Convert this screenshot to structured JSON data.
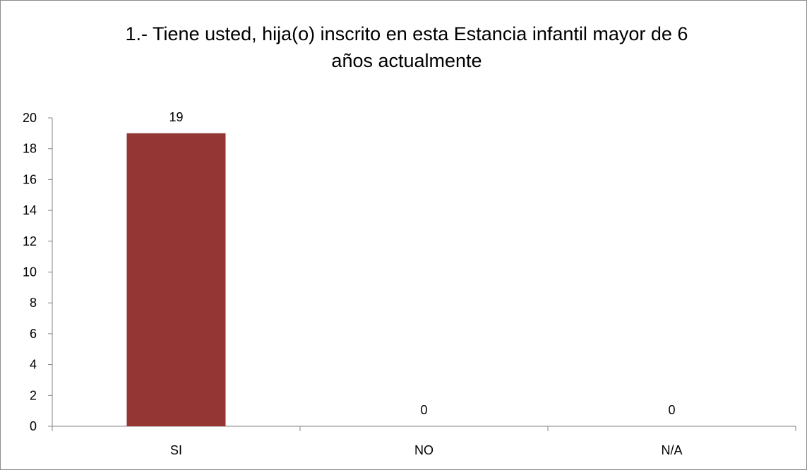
{
  "chart_data": {
    "type": "bar",
    "title_lines": [
      "1.- Tiene usted, hija(o) inscrito en esta Estancia infantil mayor de 6",
      "años actualmente"
    ],
    "categories": [
      "SI",
      "NO",
      "N/A"
    ],
    "values": [
      19,
      0,
      0
    ],
    "data_labels": [
      "19",
      "0",
      "0"
    ],
    "ylim": [
      0,
      20
    ],
    "y_ticks": [
      0,
      2,
      4,
      6,
      8,
      10,
      12,
      14,
      16,
      18,
      20
    ],
    "y_tick_labels": [
      "0",
      "2",
      "4",
      "6",
      "8",
      "10",
      "12",
      "14",
      "16",
      "18",
      "20"
    ],
    "bar_color": "#943634",
    "axis_color": "#868686",
    "grid": false,
    "legend": "none"
  }
}
